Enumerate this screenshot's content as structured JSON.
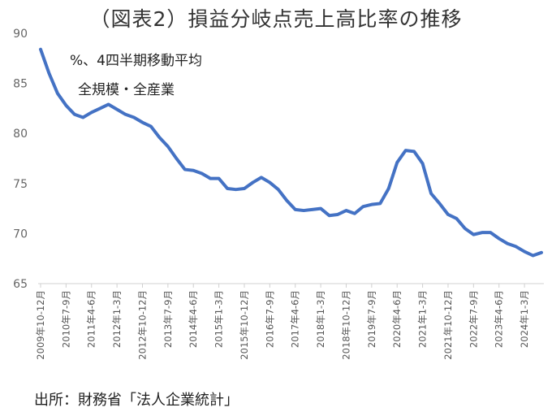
{
  "chart_data": {
    "type": "line",
    "title": "（図表2）損益分岐点売上高比率の推移",
    "annotations": [
      "%、4四半期移動平均",
      "全規模・全産業"
    ],
    "source": "出所：財務省「法人企業統計」",
    "ylim": [
      65,
      90
    ],
    "yticks": [
      "65",
      "70",
      "75",
      "80",
      "85",
      "90"
    ],
    "grid": false,
    "line_color": "#4472C4",
    "x_tick_labels": [
      "2009年10-12月",
      "2010年7-9月",
      "2011年4-6月",
      "2012年1-3月",
      "2012年10-12月",
      "2013年7-9月",
      "2014年4-6月",
      "2015年1-3月",
      "2015年10-12月",
      "2016年7-9月",
      "2017年4-6月",
      "2018年1-3月",
      "2018年10-12月",
      "2019年7-9月",
      "2020年4-6月",
      "2021年1-3月",
      "2021年10-12月",
      "2022年7-9月",
      "2023年4-6月",
      "2024年1-3月"
    ],
    "x_tick_every": 3,
    "series": [
      {
        "values": [
          88.4,
          86.0,
          84.0,
          82.8,
          81.9,
          81.6,
          82.1,
          82.5,
          82.9,
          82.4,
          81.9,
          81.6,
          81.1,
          80.7,
          79.6,
          78.7,
          77.5,
          76.4,
          76.3,
          76.0,
          75.5,
          75.5,
          74.5,
          74.4,
          74.5,
          75.1,
          75.6,
          75.1,
          74.4,
          73.3,
          72.4,
          72.3,
          72.4,
          72.5,
          71.8,
          71.9,
          72.3,
          72.0,
          72.7,
          72.9,
          73.0,
          74.5,
          77.1,
          78.3,
          78.2,
          77.0,
          74.0,
          73.0,
          71.9,
          71.5,
          70.5,
          69.9,
          70.1,
          70.1,
          69.5,
          69.0,
          68.7,
          68.2,
          67.8,
          68.1
        ]
      }
    ]
  }
}
